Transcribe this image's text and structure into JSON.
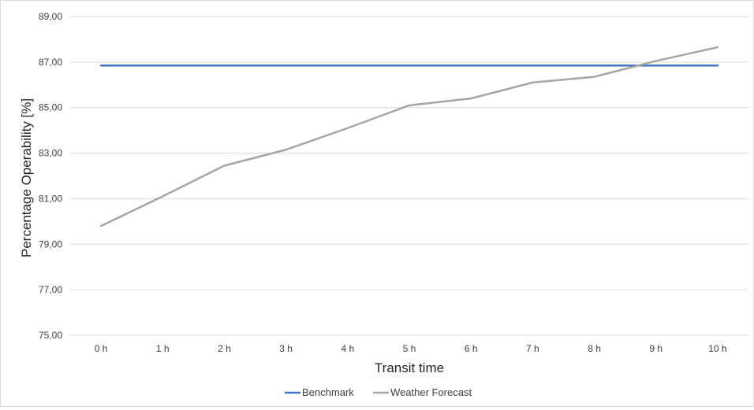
{
  "chart_data": {
    "type": "line",
    "title": "",
    "xlabel": "Transit time",
    "ylabel": "Percentage Operability [%]",
    "categories": [
      "0 h",
      "1 h",
      "2 h",
      "3 h",
      "4 h",
      "5 h",
      "6 h",
      "7 h",
      "8 h",
      "9 h",
      "10 h"
    ],
    "ylim": [
      75,
      89
    ],
    "yticks": [
      "75,00",
      "77,00",
      "79,00",
      "81,00",
      "83,00",
      "85,00",
      "87,00",
      "89,00"
    ],
    "grid": "horizontal",
    "legend_position": "bottom",
    "series": [
      {
        "name": "Benchmark",
        "color": "#4472c4",
        "values": [
          86.85,
          86.85,
          86.85,
          86.85,
          86.85,
          86.85,
          86.85,
          86.85,
          86.85,
          86.85,
          86.85
        ]
      },
      {
        "name": "Weather Forecast",
        "color": "#a5a5a5",
        "values": [
          79.8,
          81.1,
          82.45,
          83.15,
          84.1,
          85.1,
          85.4,
          86.1,
          86.35,
          87.05,
          87.65
        ]
      }
    ]
  }
}
